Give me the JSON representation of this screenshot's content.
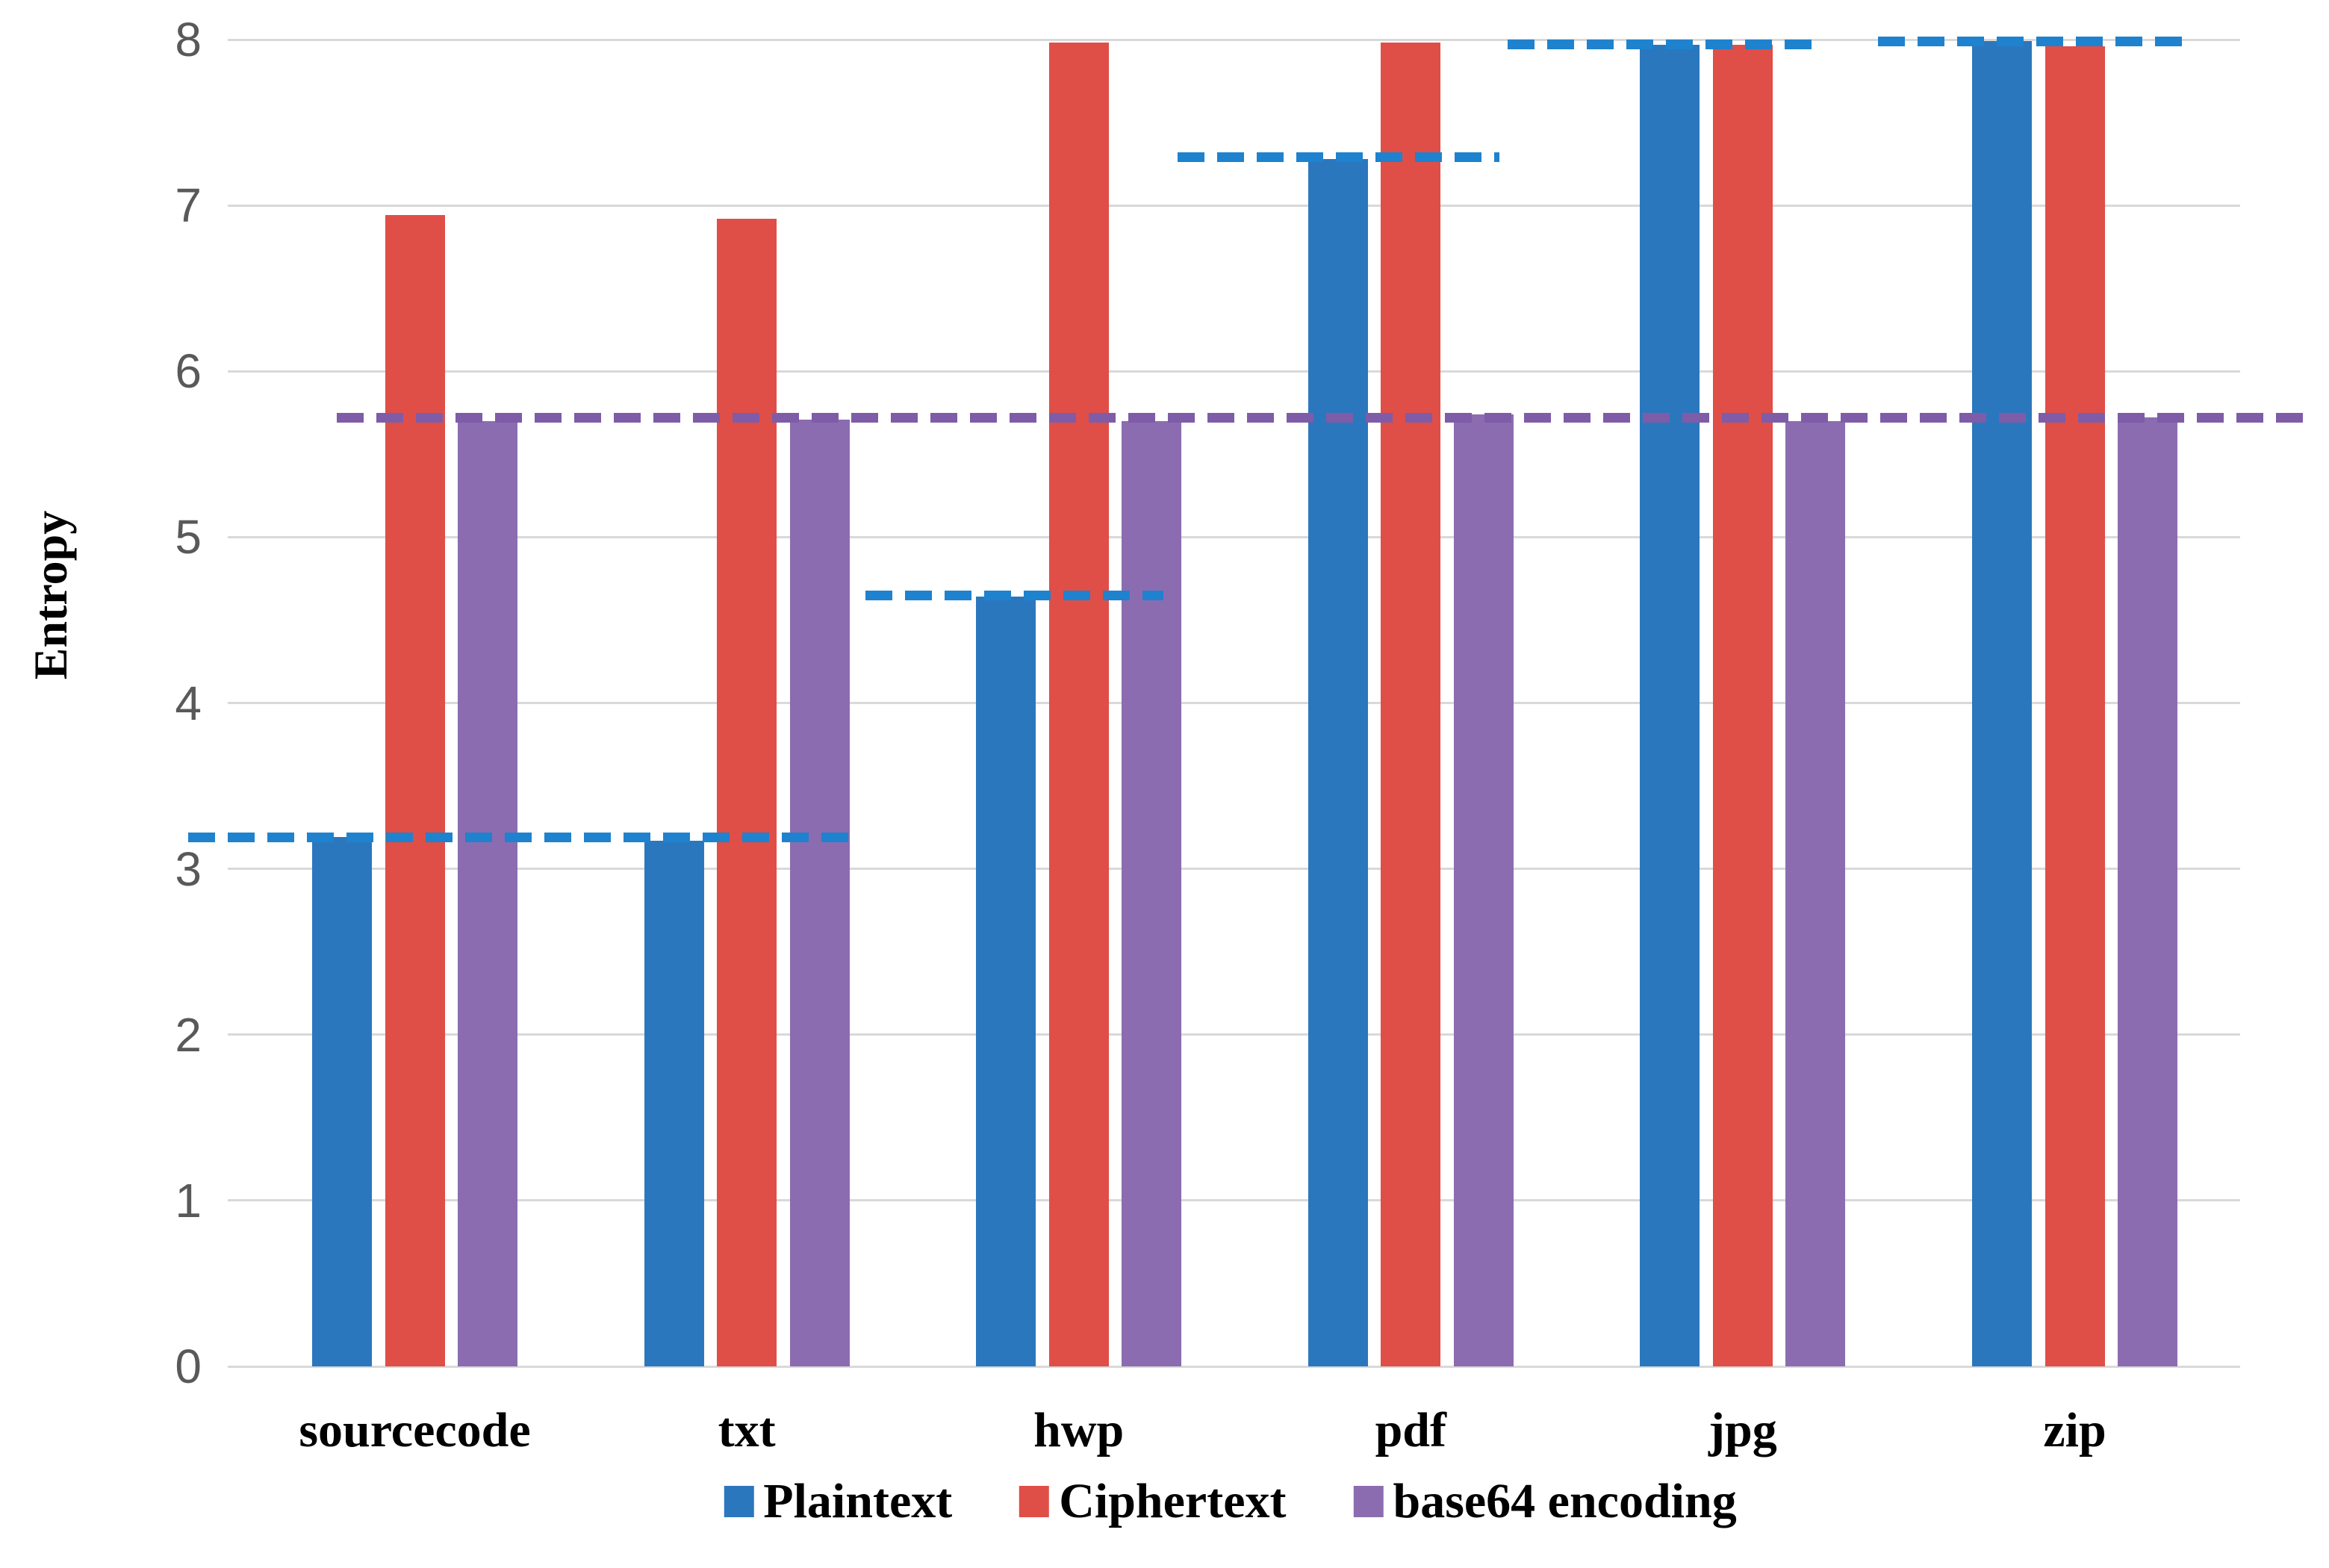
{
  "chart_data": {
    "type": "bar",
    "title": "",
    "xlabel": "",
    "ylabel": "Entropy",
    "ylim": [
      0,
      8
    ],
    "yticks": [
      "0",
      "1",
      "2",
      "3",
      "4",
      "5",
      "6",
      "7",
      "8"
    ],
    "grid": true,
    "legend_position": "bottom",
    "categories": [
      "sourcecode",
      "txt",
      "hwp",
      "pdf",
      "jpg",
      "zip"
    ],
    "series": [
      {
        "name": "Plaintext",
        "color": "#2B77BE",
        "values": [
          3.19,
          3.17,
          4.64,
          7.28,
          7.97,
          7.99
        ]
      },
      {
        "name": "Ciphertext",
        "color": "#E04E48",
        "values": [
          6.94,
          6.92,
          7.98,
          7.98,
          7.97,
          7.96
        ]
      },
      {
        "name": "base64 encoding",
        "color": "#8C6CB0",
        "values": [
          5.7,
          5.71,
          5.7,
          5.74,
          5.7,
          5.72
        ]
      }
    ],
    "dashed_guides": [
      {
        "series": "Plaintext",
        "color": "#1E82CE",
        "value": 3.19,
        "left_pct": -1.97,
        "width_pct": 33.3
      },
      {
        "series": "Plaintext",
        "color": "#1E82CE",
        "value": 4.65,
        "left_pct": 31.7,
        "width_pct": 14.8
      },
      {
        "series": "Plaintext",
        "color": "#1E82CE",
        "value": 7.29,
        "left_pct": 47.2,
        "width_pct": 16.0
      },
      {
        "series": "Plaintext",
        "color": "#1E82CE",
        "value": 7.97,
        "left_pct": 63.6,
        "width_pct": 15.4
      },
      {
        "series": "Plaintext",
        "color": "#1E82CE",
        "value": 7.99,
        "left_pct": 82.0,
        "width_pct": 15.6
      },
      {
        "series": "base64 encoding",
        "color": "#7E5CA8",
        "value": 5.72,
        "left_pct": 5.4,
        "width_pct": 97.7
      }
    ],
    "colors": {
      "gridline": "#d9d9d9",
      "tick_text": "#595959",
      "axis_text": "#000000"
    }
  }
}
